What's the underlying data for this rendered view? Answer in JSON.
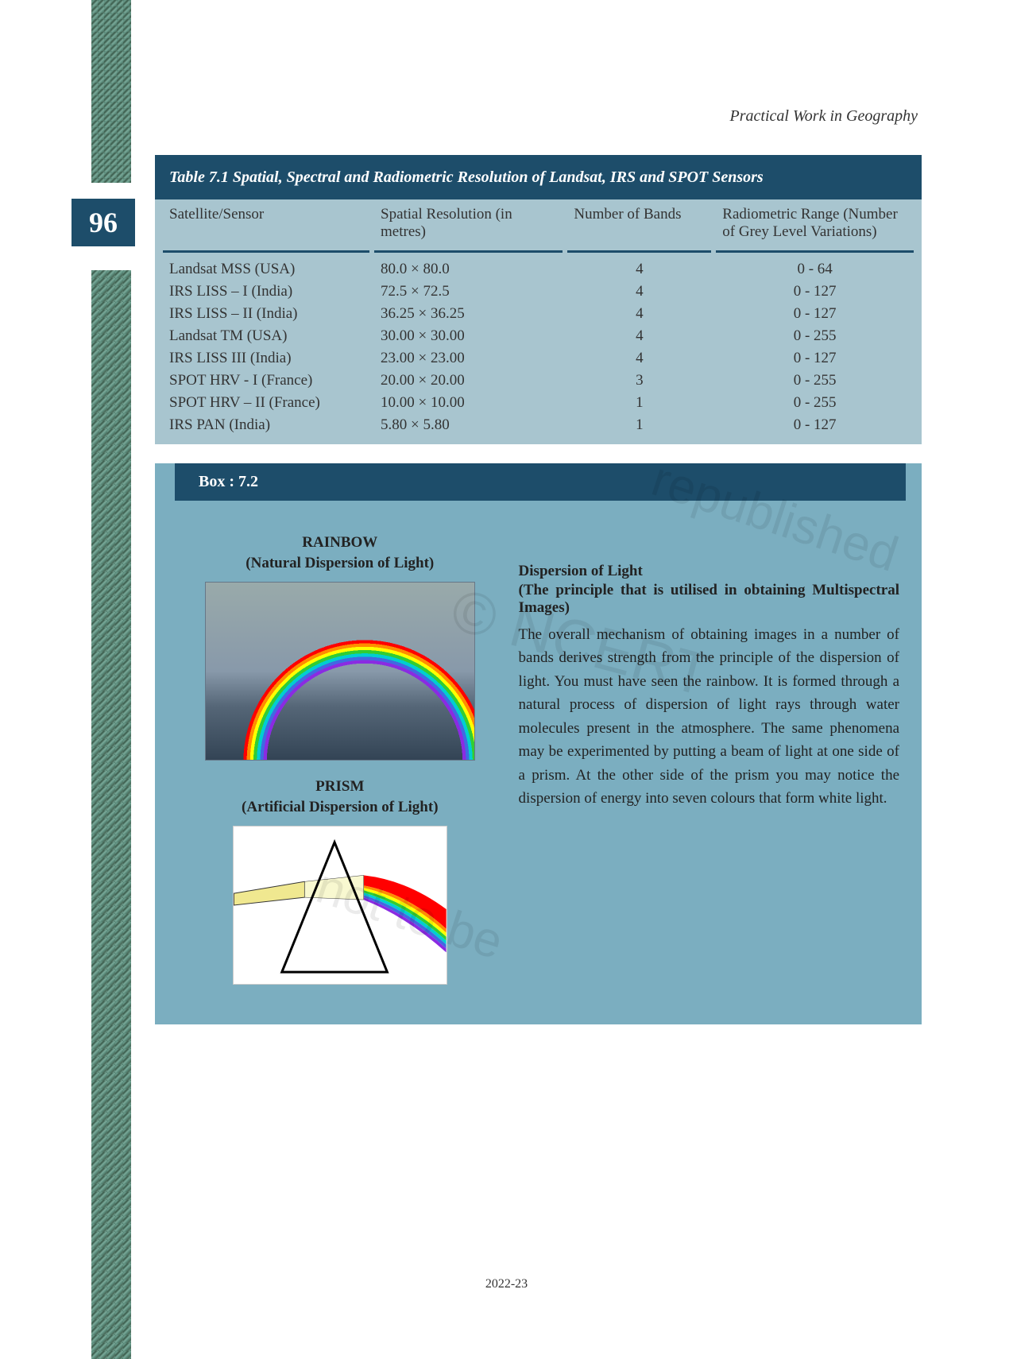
{
  "header": {
    "book_title": "Practical Work in Geography"
  },
  "page_number": "96",
  "footer_year": "2022-23",
  "table": {
    "title": "Table 7.1 Spatial, Spectral and Radiometric Resolution of Landsat, IRS and SPOT  Sensors",
    "columns": {
      "c1": "Satellite/Sensor",
      "c2": "Spatial Resolution (in metres)",
      "c3": "Number of Bands",
      "c4": "Radiometric Range (Number of Grey Level Variations)"
    },
    "rows": [
      {
        "sensor": "Landsat MSS (USA)",
        "spatial": "80.0 × 80.0",
        "bands": "4",
        "radio": "0 - 64"
      },
      {
        "sensor": "IRS LISS – I (India)",
        "spatial": "72.5 × 72.5",
        "bands": "4",
        "radio": "0 - 127"
      },
      {
        "sensor": "IRS LISS – II (India)",
        "spatial": "36.25 × 36.25",
        "bands": "4",
        "radio": "0 - 127"
      },
      {
        "sensor": "Landsat TM (USA)",
        "spatial": "30.00 × 30.00",
        "bands": "4",
        "radio": "0 - 255"
      },
      {
        "sensor": "IRS LISS III (India)",
        "spatial": "23.00 × 23.00",
        "bands": "4",
        "radio": "0 - 127"
      },
      {
        "sensor": "SPOT HRV - I (France)",
        "spatial": "20.00 × 20.00",
        "bands": "3",
        "radio": "0 - 255"
      },
      {
        "sensor": "SPOT HRV – II (France)",
        "spatial": "10.00 × 10.00",
        "bands": "1",
        "radio": "0 - 255"
      },
      {
        "sensor": "IRS PAN (India)",
        "spatial": "5.80 × 5.80",
        "bands": "1",
        "radio": "0 - 127"
      }
    ]
  },
  "box": {
    "header": "Box : 7.2",
    "left": {
      "title1": "RAINBOW",
      "subtitle1": "(Natural Dispersion of Light)",
      "title2": "PRISM",
      "subtitle2": "(Artificial Dispersion of Light)"
    },
    "right": {
      "title": "Dispersion of Light",
      "subtitle": "(The principle that is utilised in obtaining Multispectral Images)",
      "text": "The overall mechanism of obtaining images in a number of bands derives strength from the principle of the dispersion of light. You must have seen the rainbow. It is formed through a natural process of dispersion of light rays through water molecules present in the atmosphere. The same phenomena may be experimented by putting a beam of light at one side of a prism. At the other side of the prism you may notice the dispersion of energy into seven colours that form white light."
    }
  },
  "watermarks": {
    "w1": "© NCERT",
    "w2": "republished",
    "w3": "not to be"
  },
  "colors": {
    "header_bg": "#1d4d6a",
    "table_bg": "#a8c5cf",
    "box_bg": "#7baec0",
    "text": "#333333"
  },
  "prism": {
    "triangle_stroke": "#000000",
    "beam_in_fill": "#f0e890",
    "spectrum": [
      "#8a2be2",
      "#4169e1",
      "#00ced1",
      "#32cd32",
      "#ffff00",
      "#ff8c00",
      "#ff0000"
    ]
  }
}
